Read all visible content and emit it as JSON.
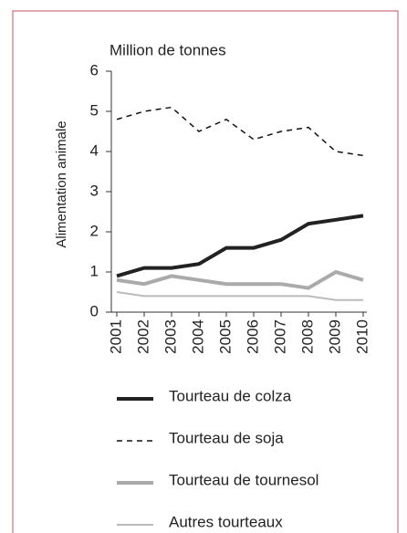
{
  "chart_data": {
    "type": "line",
    "title": "Million de tonnes",
    "y_label": "Alimentation animale",
    "categories": [
      "2001",
      "2002",
      "2003",
      "2004",
      "2005",
      "2006",
      "2007",
      "2008",
      "2009",
      "2010"
    ],
    "series": [
      {
        "name": "Tourteau de colza",
        "color": "#222222",
        "width": 4,
        "dash": "none",
        "values": [
          0.9,
          1.1,
          1.1,
          1.2,
          1.6,
          1.6,
          1.8,
          2.2,
          2.3,
          2.4
        ]
      },
      {
        "name": "Tourteau de soja",
        "color": "#111111",
        "width": 1.5,
        "dash": "6 5",
        "values": [
          4.8,
          5.0,
          5.1,
          4.5,
          4.8,
          4.3,
          4.5,
          4.6,
          4.0,
          3.9
        ]
      },
      {
        "name": "Tourteau de tournesol",
        "color": "#aaaaaa",
        "width": 4,
        "dash": "none",
        "values": [
          0.8,
          0.7,
          0.9,
          0.8,
          0.7,
          0.7,
          0.7,
          0.6,
          1.0,
          0.8
        ]
      },
      {
        "name": "Autres tourteaux",
        "color": "#bbbbbb",
        "width": 2,
        "dash": "none",
        "values": [
          0.5,
          0.4,
          0.4,
          0.4,
          0.4,
          0.4,
          0.4,
          0.4,
          0.3,
          0.3
        ]
      }
    ],
    "ylim": [
      0,
      6
    ],
    "yticks": [
      0,
      1,
      2,
      3,
      4,
      5,
      6
    ]
  }
}
